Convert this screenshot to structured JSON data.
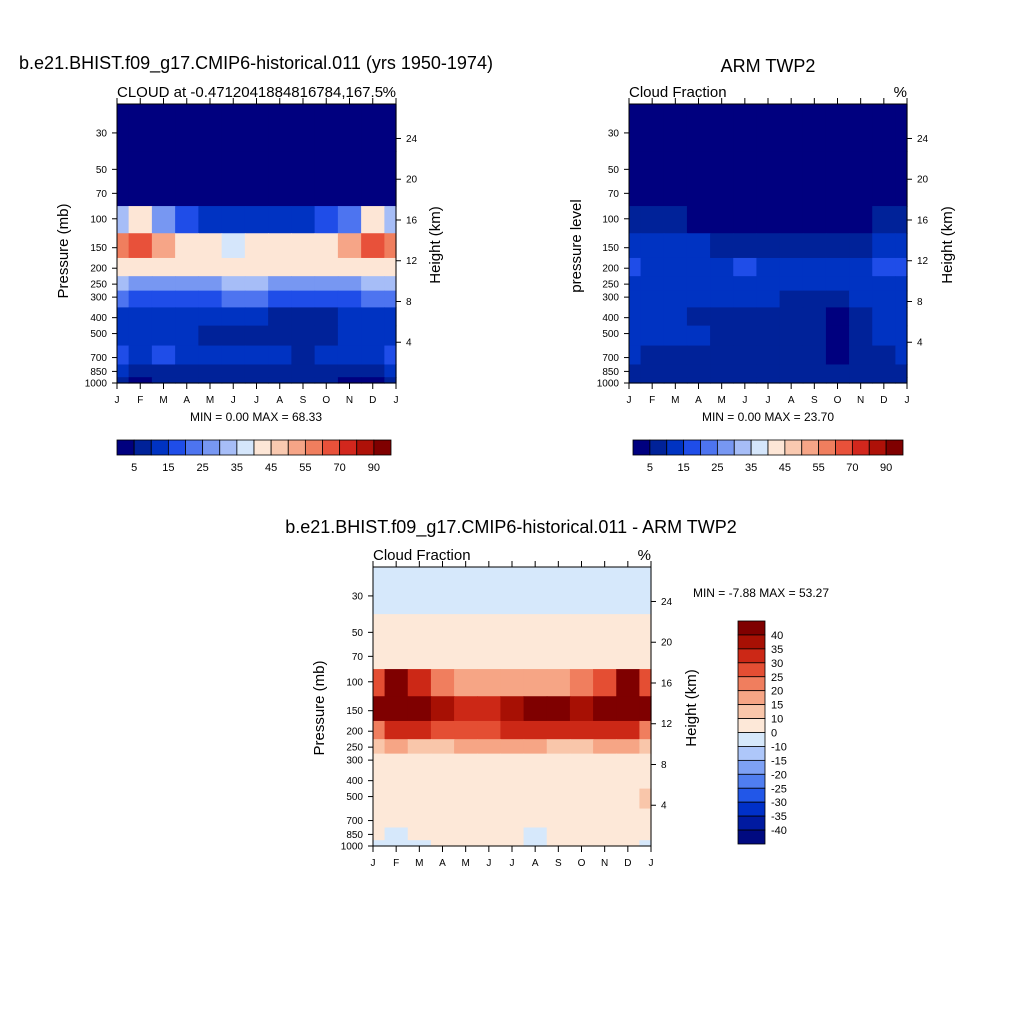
{
  "chart_data": [
    {
      "type": "heatmap",
      "title": "b.e21.BHIST.f09_g17.CMIP6-historical.011 (yrs 1950-1974)",
      "subtitle_left": "CLOUD at -0.4712041884816784,167.5",
      "subtitle_right": "%",
      "ylabel": "Pressure (mb)",
      "ylabel_right": "Height (km)",
      "stats": "MIN =   0.00 MAX =  68.33",
      "x": [
        "J",
        "F",
        "M",
        "A",
        "M",
        "J",
        "J",
        "A",
        "S",
        "O",
        "N",
        "D",
        "J"
      ],
      "y_ticks": [
        30,
        50,
        70,
        100,
        150,
        200,
        250,
        300,
        400,
        500,
        700,
        850,
        1000
      ],
      "y_right_ticks": [
        24,
        20,
        16,
        12,
        8,
        4
      ],
      "levels": [
        5,
        10,
        15,
        20,
        25,
        30,
        35,
        40,
        45,
        50,
        55,
        60,
        70,
        80,
        90
      ],
      "colorbar_labels": [
        5,
        15,
        25,
        35,
        45,
        55,
        70,
        90
      ],
      "values": [
        [
          0,
          0,
          0,
          0,
          0,
          0,
          0,
          0,
          0,
          0,
          0,
          0,
          0
        ],
        [
          0,
          0,
          0,
          0,
          0,
          0,
          0,
          0,
          0,
          0,
          0,
          0,
          0
        ],
        [
          3,
          4,
          3,
          2,
          2,
          2,
          2,
          2,
          2,
          2,
          3,
          4,
          3
        ],
        [
          30,
          42,
          28,
          18,
          14,
          14,
          14,
          14,
          14,
          16,
          24,
          40,
          30
        ],
        [
          58,
          66,
          52,
          44,
          40,
          38,
          40,
          42,
          40,
          42,
          50,
          62,
          58
        ],
        [
          40,
          44,
          44,
          42,
          42,
          42,
          44,
          44,
          42,
          44,
          44,
          44,
          40
        ],
        [
          30,
          28,
          26,
          26,
          28,
          30,
          30,
          28,
          26,
          26,
          28,
          30,
          30
        ],
        [
          20,
          18,
          16,
          16,
          18,
          20,
          20,
          18,
          16,
          16,
          18,
          20,
          20
        ],
        [
          14,
          10,
          10,
          12,
          12,
          12,
          10,
          8,
          8,
          8,
          10,
          14,
          14
        ],
        [
          10,
          14,
          12,
          10,
          8,
          8,
          8,
          8,
          8,
          8,
          10,
          10,
          10
        ],
        [
          16,
          14,
          16,
          12,
          10,
          10,
          10,
          10,
          8,
          10,
          10,
          14,
          16
        ],
        [
          10,
          8,
          8,
          8,
          8,
          8,
          8,
          8,
          8,
          8,
          8,
          8,
          10
        ],
        [
          6,
          4,
          6,
          6,
          8,
          8,
          8,
          8,
          8,
          6,
          4,
          4,
          6
        ]
      ]
    },
    {
      "type": "heatmap",
      "title": "ARM TWP2",
      "subtitle_left": "Cloud Fraction",
      "subtitle_right": "%",
      "ylabel": "pressure level",
      "ylabel_right": "Height (km)",
      "stats": "MIN =   0.00 MAX =  23.70",
      "x": [
        "J",
        "F",
        "M",
        "A",
        "M",
        "J",
        "J",
        "A",
        "S",
        "O",
        "N",
        "D",
        "J"
      ],
      "y_ticks": [
        30,
        50,
        70,
        100,
        150,
        200,
        250,
        300,
        400,
        500,
        700,
        850,
        1000
      ],
      "y_right_ticks": [
        24,
        20,
        16,
        12,
        8,
        4
      ],
      "levels": [
        5,
        10,
        15,
        20,
        25,
        30,
        35,
        40,
        45,
        50,
        55,
        60,
        70,
        80,
        90
      ],
      "colorbar_labels": [
        5,
        15,
        25,
        35,
        45,
        55,
        70,
        90
      ],
      "values": [
        [
          0,
          0,
          0,
          0,
          0,
          0,
          0,
          0,
          0,
          0,
          0,
          0,
          0
        ],
        [
          0,
          0,
          0,
          0,
          0,
          0,
          0,
          0,
          0,
          0,
          0,
          0,
          0
        ],
        [
          0,
          0,
          0,
          0,
          0,
          0,
          0,
          0,
          0,
          0,
          0,
          0,
          0
        ],
        [
          6,
          8,
          6,
          4,
          2,
          2,
          2,
          2,
          2,
          4,
          4,
          6,
          6
        ],
        [
          12,
          12,
          10,
          10,
          8,
          8,
          8,
          6,
          6,
          8,
          8,
          12,
          12
        ],
        [
          16,
          14,
          12,
          14,
          12,
          16,
          14,
          12,
          12,
          12,
          14,
          16,
          16
        ],
        [
          14,
          12,
          12,
          12,
          12,
          14,
          12,
          10,
          10,
          10,
          12,
          12,
          14
        ],
        [
          12,
          12,
          10,
          10,
          10,
          12,
          12,
          8,
          8,
          6,
          10,
          12,
          12
        ],
        [
          12,
          12,
          10,
          8,
          8,
          8,
          8,
          8,
          6,
          4,
          8,
          10,
          12
        ],
        [
          12,
          10,
          12,
          10,
          8,
          8,
          8,
          8,
          6,
          4,
          8,
          10,
          12
        ],
        [
          10,
          8,
          8,
          6,
          8,
          8,
          6,
          8,
          6,
          4,
          8,
          8,
          10
        ],
        [
          8,
          6,
          6,
          6,
          6,
          6,
          8,
          6,
          6,
          6,
          6,
          8,
          8
        ],
        [
          6,
          6,
          6,
          6,
          6,
          6,
          6,
          6,
          6,
          6,
          6,
          6,
          6
        ]
      ]
    },
    {
      "type": "heatmap",
      "title": "b.e21.BHIST.f09_g17.CMIP6-historical.011 - ARM TWP2",
      "subtitle_left": "Cloud Fraction",
      "subtitle_right": "%",
      "ylabel": "Pressure (mb)",
      "ylabel_right": "Height (km)",
      "stats": "MIN =  -7.88 MAX =  53.27",
      "x": [
        "J",
        "F",
        "M",
        "A",
        "M",
        "J",
        "J",
        "A",
        "S",
        "O",
        "N",
        "D",
        "J"
      ],
      "y_ticks": [
        30,
        50,
        70,
        100,
        150,
        200,
        250,
        300,
        400,
        500,
        700,
        850,
        1000
      ],
      "y_right_ticks": [
        24,
        20,
        16,
        12,
        8,
        4
      ],
      "levels": [
        -40,
        -35,
        -30,
        -25,
        -20,
        -15,
        -10,
        0,
        10,
        15,
        20,
        25,
        30,
        35,
        40
      ],
      "colorbar_labels": [
        40,
        35,
        30,
        25,
        20,
        15,
        10,
        0,
        -10,
        -15,
        -20,
        -25,
        -30,
        -35,
        -40
      ],
      "values": [
        [
          -2,
          -2,
          -2,
          -2,
          -2,
          -2,
          -2,
          -2,
          -2,
          -2,
          -2,
          -2,
          -2
        ],
        [
          5,
          5,
          5,
          5,
          5,
          5,
          5,
          5,
          5,
          5,
          5,
          5,
          5
        ],
        [
          6,
          6,
          6,
          5,
          5,
          5,
          5,
          5,
          5,
          5,
          6,
          6,
          6
        ],
        [
          28,
          42,
          30,
          22,
          18,
          18,
          18,
          18,
          18,
          20,
          26,
          40,
          28
        ],
        [
          48,
          52,
          45,
          36,
          34,
          32,
          36,
          44,
          44,
          36,
          40,
          50,
          48
        ],
        [
          24,
          30,
          32,
          28,
          26,
          28,
          30,
          32,
          30,
          30,
          32,
          30,
          24
        ],
        [
          14,
          16,
          14,
          14,
          16,
          18,
          18,
          16,
          14,
          14,
          16,
          18,
          14
        ],
        [
          6,
          6,
          6,
          6,
          6,
          8,
          8,
          8,
          6,
          6,
          6,
          8,
          6
        ],
        [
          4,
          4,
          4,
          4,
          6,
          6,
          4,
          2,
          2,
          4,
          4,
          4,
          4
        ],
        [
          2,
          4,
          2,
          6,
          2,
          2,
          2,
          2,
          2,
          4,
          2,
          2,
          10
        ],
        [
          6,
          6,
          6,
          6,
          4,
          4,
          4,
          4,
          4,
          4,
          4,
          6,
          6
        ],
        [
          2,
          -2,
          2,
          2,
          4,
          4,
          4,
          -2,
          2,
          2,
          2,
          4,
          2
        ],
        [
          -2,
          -4,
          -2,
          2,
          2,
          2,
          2,
          -2,
          2,
          2,
          2,
          2,
          -2
        ]
      ]
    }
  ]
}
